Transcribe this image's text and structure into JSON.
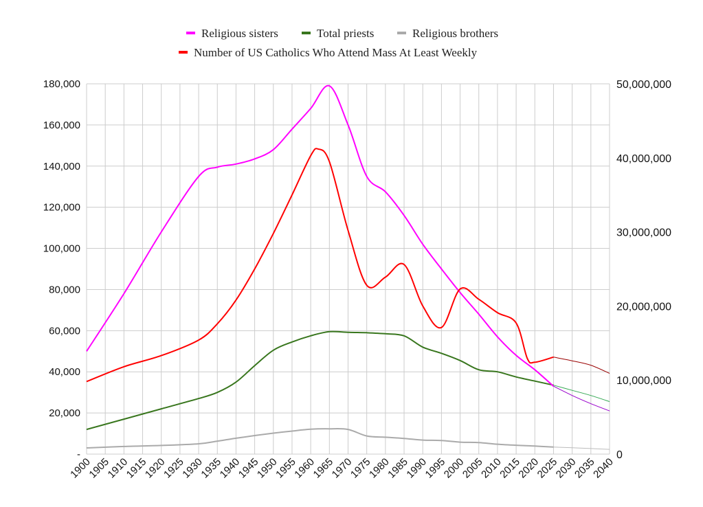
{
  "chart_data": {
    "type": "line",
    "title": "",
    "xlabel": "",
    "ylabel_left": "",
    "ylabel_right": "",
    "x_ticks": [
      "1900",
      "1905",
      "1910",
      "1915",
      "1920",
      "1925",
      "1930",
      "1935",
      "1940",
      "1945",
      "1950",
      "1955",
      "1960",
      "1965",
      "1970",
      "1975",
      "1980",
      "1985",
      "1990",
      "1995",
      "2000",
      "2005",
      "2010",
      "2015",
      "2020",
      "2025",
      "2030",
      "2035",
      "2040"
    ],
    "xlim": [
      1900,
      2040
    ],
    "y_left": {
      "ylim": [
        0,
        180000
      ],
      "ticks": [
        0,
        20000,
        40000,
        60000,
        80000,
        100000,
        120000,
        140000,
        160000,
        180000
      ],
      "tick_labels": [
        "-",
        "20,000",
        "40,000",
        "60,000",
        "80,000",
        "100,000",
        "120,000",
        "140,000",
        "160,000",
        "180,000"
      ]
    },
    "y_right": {
      "ylim": [
        0,
        50000000
      ],
      "ticks": [
        0,
        10000000,
        20000000,
        30000000,
        40000000,
        50000000
      ],
      "tick_labels": [
        "0",
        "10,000,000",
        "20,000,000",
        "30,000,000",
        "40,000,000",
        "50,000,000"
      ]
    },
    "grid": true,
    "legend_position": "top",
    "series": [
      {
        "name": "Religious sisters",
        "axis": "left",
        "color": "#ff00ff",
        "projection_color": "#9900cc",
        "points": [
          [
            1900,
            50000
          ],
          [
            1910,
            78000
          ],
          [
            1920,
            108000
          ],
          [
            1930,
            135000
          ],
          [
            1935,
            139500
          ],
          [
            1940,
            141000
          ],
          [
            1945,
            143500
          ],
          [
            1950,
            148000
          ],
          [
            1955,
            158000
          ],
          [
            1960,
            168000
          ],
          [
            1965,
            179000
          ],
          [
            1970,
            160000
          ],
          [
            1975,
            135000
          ],
          [
            1980,
            127500
          ],
          [
            1985,
            116000
          ],
          [
            1990,
            102000
          ],
          [
            1995,
            90000
          ],
          [
            2000,
            78500
          ],
          [
            2005,
            68000
          ],
          [
            2010,
            57000
          ],
          [
            2015,
            48000
          ],
          [
            2020,
            41000
          ],
          [
            2025,
            33000
          ]
        ],
        "projection": [
          [
            2025,
            33000
          ],
          [
            2030,
            28500
          ],
          [
            2035,
            24500
          ],
          [
            2040,
            21000
          ]
        ]
      },
      {
        "name": "Total priests",
        "axis": "left",
        "color": "#38761d",
        "projection_color": "#34a853",
        "points": [
          [
            1900,
            12000
          ],
          [
            1910,
            17000
          ],
          [
            1920,
            22000
          ],
          [
            1930,
            27000
          ],
          [
            1935,
            30000
          ],
          [
            1940,
            35000
          ],
          [
            1945,
            43000
          ],
          [
            1950,
            50500
          ],
          [
            1955,
            54500
          ],
          [
            1960,
            57500
          ],
          [
            1965,
            59500
          ],
          [
            1970,
            59200
          ],
          [
            1975,
            59000
          ],
          [
            1980,
            58500
          ],
          [
            1985,
            57500
          ],
          [
            1990,
            52000
          ],
          [
            1995,
            49000
          ],
          [
            2000,
            45500
          ],
          [
            2005,
            41000
          ],
          [
            2010,
            40000
          ],
          [
            2015,
            37500
          ],
          [
            2020,
            35500
          ],
          [
            2025,
            33500
          ]
        ],
        "projection": [
          [
            2025,
            33500
          ],
          [
            2030,
            31000
          ],
          [
            2035,
            28500
          ],
          [
            2040,
            25500
          ]
        ]
      },
      {
        "name": "Religious brothers",
        "axis": "left",
        "color": "#aaaaaa",
        "projection_color": "#bbbbbb",
        "points": [
          [
            1900,
            3000
          ],
          [
            1910,
            3700
          ],
          [
            1920,
            4200
          ],
          [
            1930,
            5000
          ],
          [
            1935,
            6300
          ],
          [
            1940,
            7700
          ],
          [
            1945,
            9000
          ],
          [
            1950,
            10200
          ],
          [
            1955,
            11200
          ],
          [
            1960,
            12100
          ],
          [
            1965,
            12300
          ],
          [
            1970,
            12000
          ],
          [
            1975,
            8800
          ],
          [
            1980,
            8200
          ],
          [
            1985,
            7600
          ],
          [
            1990,
            6800
          ],
          [
            1995,
            6600
          ],
          [
            2000,
            5800
          ],
          [
            2005,
            5600
          ],
          [
            2010,
            4800
          ],
          [
            2015,
            4300
          ],
          [
            2020,
            3900
          ],
          [
            2025,
            3400
          ]
        ],
        "projection": [
          [
            2025,
            3400
          ],
          [
            2030,
            3100
          ],
          [
            2035,
            2700
          ],
          [
            2040,
            2300
          ]
        ]
      },
      {
        "name": "Number of US Catholics Who Attend Mass At Least Weekly",
        "axis": "right",
        "color": "#ff0000",
        "projection_color": "#990000",
        "points": [
          [
            1900,
            9800000
          ],
          [
            1910,
            11800000
          ],
          [
            1920,
            13300000
          ],
          [
            1930,
            15400000
          ],
          [
            1935,
            17600000
          ],
          [
            1940,
            20800000
          ],
          [
            1945,
            25000000
          ],
          [
            1950,
            29800000
          ],
          [
            1955,
            35000000
          ],
          [
            1960,
            40300000
          ],
          [
            1962,
            41200000
          ],
          [
            1965,
            39500000
          ],
          [
            1970,
            30200000
          ],
          [
            1975,
            22800000
          ],
          [
            1980,
            23900000
          ],
          [
            1985,
            25600000
          ],
          [
            1990,
            20000000
          ],
          [
            1995,
            17100000
          ],
          [
            2000,
            22300000
          ],
          [
            2005,
            20900000
          ],
          [
            2010,
            19100000
          ],
          [
            2015,
            17700000
          ],
          [
            2018,
            12900000
          ],
          [
            2020,
            12400000
          ],
          [
            2025,
            13100000
          ]
        ],
        "projection": [
          [
            2025,
            13100000
          ],
          [
            2030,
            12600000
          ],
          [
            2035,
            12000000
          ],
          [
            2040,
            10900000
          ]
        ]
      }
    ]
  }
}
